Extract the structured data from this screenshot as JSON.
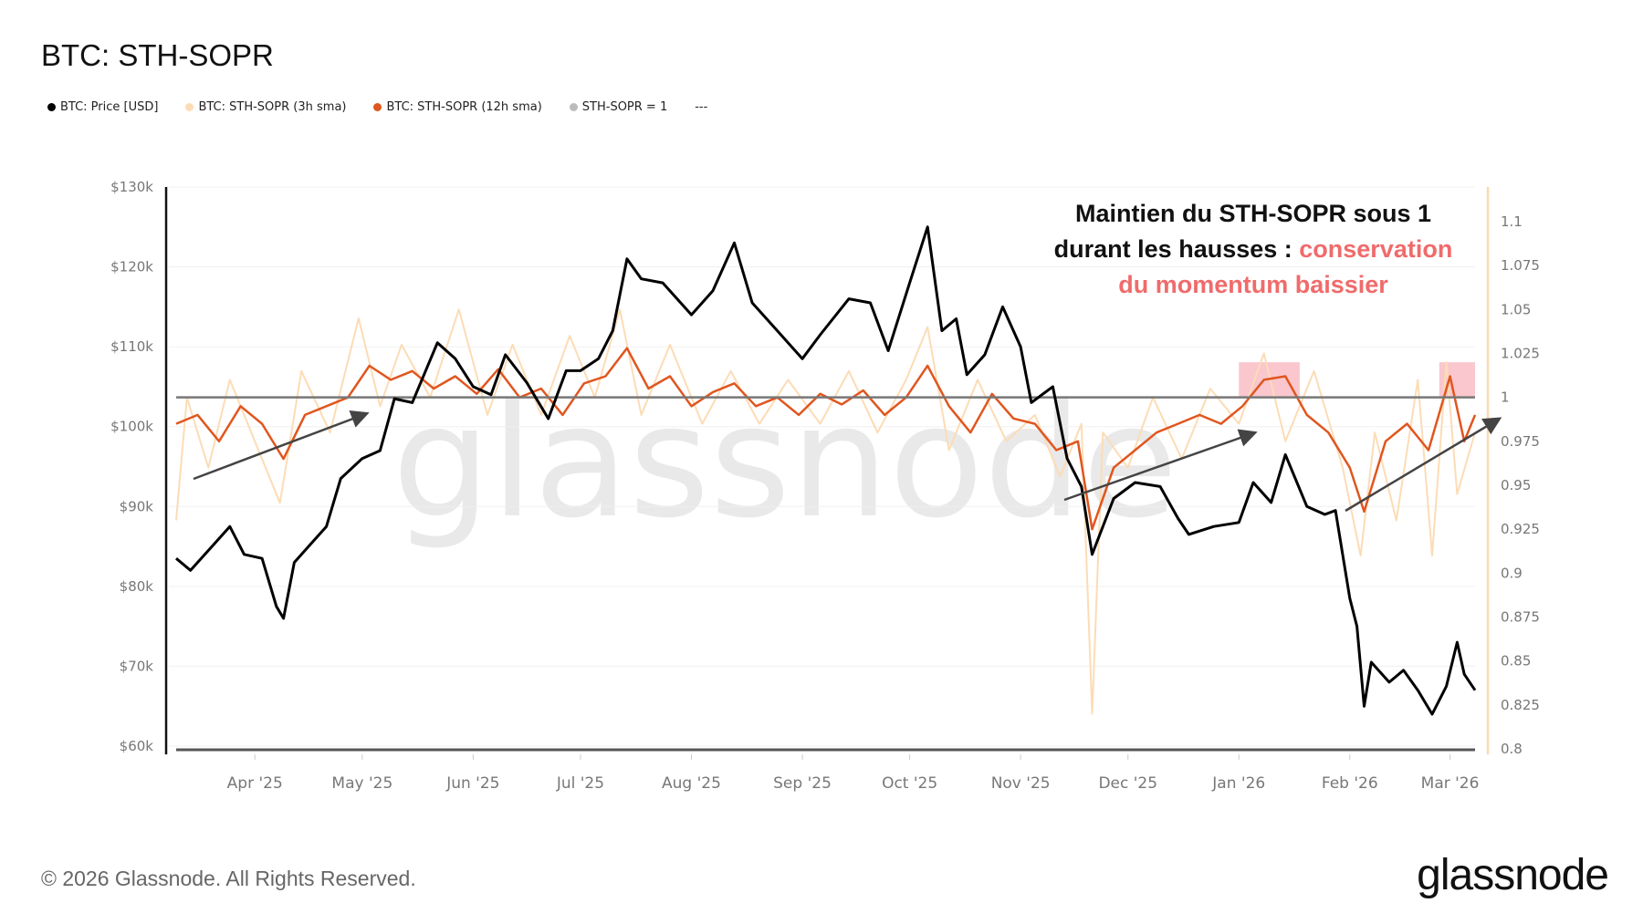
{
  "title": "BTC: STH-SOPR",
  "legend": [
    {
      "label": "BTC: Price [USD]",
      "color": "#000000"
    },
    {
      "label": "BTC: STH-SOPR (3h sma)",
      "color": "#fcdcb6"
    },
    {
      "label": "BTC: STH-SOPR (12h sma)",
      "color": "#e0561f"
    },
    {
      "label": "STH-SOPR = 1",
      "color": "#bbbbbb"
    },
    {
      "label": "---",
      "color": null
    }
  ],
  "annotation": {
    "line1": "Maintien du STH-SOPR sous 1",
    "line2a": "durant les hausses : ",
    "line2b": "conservation",
    "line3": "du momentum baissier",
    "highlight_color": "#f06b6b"
  },
  "watermark": "glassnode",
  "footer": "© 2026 Glassnode. All Rights Reserved.",
  "logo": "glassnode",
  "chart_data": {
    "type": "line",
    "title": "BTC: STH-SOPR",
    "grid": true,
    "legend_position": "top-left",
    "xlim": [
      "2025-03-10",
      "2026-03-08"
    ],
    "x_ticks": [
      {
        "date": "2025-04-01",
        "label": "Apr '25"
      },
      {
        "date": "2025-05-01",
        "label": "May '25"
      },
      {
        "date": "2025-06-01",
        "label": "Jun '25"
      },
      {
        "date": "2025-07-01",
        "label": "Jul '25"
      },
      {
        "date": "2025-08-01",
        "label": "Aug '25"
      },
      {
        "date": "2025-09-01",
        "label": "Sep '25"
      },
      {
        "date": "2025-10-01",
        "label": "Oct '25"
      },
      {
        "date": "2025-11-01",
        "label": "Nov '25"
      },
      {
        "date": "2025-12-01",
        "label": "Dec '25"
      },
      {
        "date": "2026-01-01",
        "label": "Jan '26"
      },
      {
        "date": "2026-02-01",
        "label": "Feb '26"
      },
      {
        "date": "2026-03-01",
        "label": "Mar '26"
      }
    ],
    "y_left": {
      "lim": [
        60000,
        130000
      ],
      "ticks": [
        60000,
        70000,
        80000,
        90000,
        100000,
        110000,
        120000,
        130000
      ],
      "tick_labels": [
        "$60k",
        "$70k",
        "$80k",
        "$90k",
        "$100k",
        "$110k",
        "$120k",
        "$130k"
      ]
    },
    "y_right": {
      "lim": [
        0.8,
        1.1
      ],
      "ticks": [
        0.8,
        0.825,
        0.85,
        0.875,
        0.9,
        0.925,
        0.95,
        0.975,
        1,
        1.025,
        1.05,
        1.075,
        1.1
      ],
      "tick_labels": [
        "0.8",
        "0.825",
        "0.85",
        "0.875",
        "0.9",
        "0.925",
        "0.95",
        "0.975",
        "1",
        "1.025",
        "1.05",
        "1.075",
        "1.1"
      ]
    },
    "reference_line": {
      "name": "STH-SOPR = 1",
      "value": 1,
      "color": "#777777"
    },
    "highlights": [
      {
        "from": "2026-01-01",
        "to": "2026-01-18",
        "y_range": [
          1.0,
          1.02
        ],
        "color": "#f7b9c0"
      },
      {
        "from": "2026-02-26",
        "to": "2026-03-08",
        "y_range": [
          1.0,
          1.02
        ],
        "color": "#f7b9c0"
      }
    ],
    "series": [
      {
        "name": "BTC: Price [USD]",
        "axis": "left",
        "color": "#000000",
        "x": [
          "2025-03-10",
          "2025-03-14",
          "2025-03-20",
          "2025-03-25",
          "2025-03-29",
          "2025-04-03",
          "2025-04-07",
          "2025-04-09",
          "2025-04-12",
          "2025-04-16",
          "2025-04-21",
          "2025-04-25",
          "2025-05-01",
          "2025-05-06",
          "2025-05-10",
          "2025-05-15",
          "2025-05-22",
          "2025-05-27",
          "2025-06-01",
          "2025-06-06",
          "2025-06-10",
          "2025-06-16",
          "2025-06-22",
          "2025-06-27",
          "2025-07-01",
          "2025-07-06",
          "2025-07-10",
          "2025-07-14",
          "2025-07-18",
          "2025-07-24",
          "2025-08-01",
          "2025-08-07",
          "2025-08-13",
          "2025-08-18",
          "2025-08-25",
          "2025-09-01",
          "2025-09-06",
          "2025-09-14",
          "2025-09-20",
          "2025-09-25",
          "2025-10-01",
          "2025-10-06",
          "2025-10-10",
          "2025-10-14",
          "2025-10-17",
          "2025-10-22",
          "2025-10-27",
          "2025-11-01",
          "2025-11-04",
          "2025-11-10",
          "2025-11-14",
          "2025-11-18",
          "2025-11-21",
          "2025-11-27",
          "2025-12-03",
          "2025-12-10",
          "2025-12-15",
          "2025-12-18",
          "2025-12-25",
          "2026-01-01",
          "2026-01-05",
          "2026-01-10",
          "2026-01-14",
          "2026-01-20",
          "2026-01-25",
          "2026-01-28",
          "2026-02-01",
          "2026-02-03",
          "2026-02-05",
          "2026-02-07",
          "2026-02-12",
          "2026-02-16",
          "2026-02-20",
          "2026-02-24",
          "2026-02-28",
          "2026-03-03",
          "2026-03-05",
          "2026-03-08"
        ],
        "values": [
          83500,
          82000,
          85000,
          87500,
          84000,
          83500,
          77500,
          76000,
          83000,
          85000,
          87500,
          93500,
          96000,
          97000,
          103500,
          103000,
          110500,
          108500,
          105000,
          104000,
          109000,
          105500,
          101000,
          107000,
          107000,
          108500,
          112000,
          121000,
          118500,
          118000,
          114000,
          117000,
          123000,
          115500,
          112000,
          108500,
          111500,
          116000,
          115500,
          109500,
          118000,
          125000,
          112000,
          113500,
          106500,
          109000,
          115000,
          110000,
          103000,
          105000,
          96000,
          92500,
          84000,
          91000,
          93000,
          92500,
          88500,
          86500,
          87500,
          88000,
          93000,
          90500,
          96500,
          90000,
          89000,
          89500,
          78500,
          75000,
          65000,
          70500,
          68000,
          69500,
          67000,
          64000,
          67500,
          73000,
          69000,
          67000
        ]
      },
      {
        "name": "BTC: STH-SOPR (12h sma)",
        "axis": "right",
        "color": "#e0561f",
        "x": [
          "2025-03-10",
          "2025-03-16",
          "2025-03-22",
          "2025-03-28",
          "2025-04-03",
          "2025-04-09",
          "2025-04-15",
          "2025-04-21",
          "2025-04-27",
          "2025-05-03",
          "2025-05-09",
          "2025-05-15",
          "2025-05-21",
          "2025-05-27",
          "2025-06-02",
          "2025-06-08",
          "2025-06-14",
          "2025-06-20",
          "2025-06-26",
          "2025-07-02",
          "2025-07-08",
          "2025-07-14",
          "2025-07-20",
          "2025-07-26",
          "2025-08-01",
          "2025-08-07",
          "2025-08-13",
          "2025-08-19",
          "2025-08-25",
          "2025-08-31",
          "2025-09-06",
          "2025-09-12",
          "2025-09-18",
          "2025-09-24",
          "2025-09-30",
          "2025-10-06",
          "2025-10-12",
          "2025-10-18",
          "2025-10-24",
          "2025-10-30",
          "2025-11-05",
          "2025-11-11",
          "2025-11-17",
          "2025-11-21",
          "2025-11-27",
          "2025-12-03",
          "2025-12-09",
          "2025-12-15",
          "2025-12-21",
          "2025-12-27",
          "2026-01-02",
          "2026-01-08",
          "2026-01-14",
          "2026-01-20",
          "2026-01-26",
          "2026-02-01",
          "2026-02-05",
          "2026-02-11",
          "2026-02-17",
          "2026-02-23",
          "2026-03-01",
          "2026-03-05",
          "2026-03-08"
        ],
        "values": [
          0.985,
          0.99,
          0.975,
          0.995,
          0.985,
          0.965,
          0.99,
          0.995,
          1.0,
          1.018,
          1.01,
          1.015,
          1.005,
          1.012,
          1.002,
          1.016,
          1.0,
          1.005,
          0.99,
          1.008,
          1.012,
          1.028,
          1.005,
          1.012,
          0.995,
          1.003,
          1.008,
          0.995,
          1.0,
          0.99,
          1.002,
          0.996,
          1.004,
          0.99,
          1.0,
          1.018,
          0.995,
          0.98,
          1.002,
          0.988,
          0.985,
          0.97,
          0.975,
          0.925,
          0.96,
          0.97,
          0.98,
          0.985,
          0.99,
          0.985,
          0.995,
          1.01,
          1.012,
          0.99,
          0.98,
          0.96,
          0.935,
          0.975,
          0.985,
          0.97,
          1.012,
          0.975,
          0.99
        ]
      },
      {
        "name": "BTC: STH-SOPR (3h sma)",
        "axis": "right",
        "color": "#fcdcb6",
        "x": [
          "2025-03-10",
          "2025-03-13",
          "2025-03-19",
          "2025-03-25",
          "2025-04-01",
          "2025-04-08",
          "2025-04-14",
          "2025-04-22",
          "2025-04-30",
          "2025-05-06",
          "2025-05-12",
          "2025-05-20",
          "2025-05-28",
          "2025-06-05",
          "2025-06-12",
          "2025-06-20",
          "2025-06-28",
          "2025-07-05",
          "2025-07-12",
          "2025-07-18",
          "2025-07-26",
          "2025-08-04",
          "2025-08-12",
          "2025-08-20",
          "2025-08-28",
          "2025-09-06",
          "2025-09-14",
          "2025-09-22",
          "2025-09-30",
          "2025-10-06",
          "2025-10-12",
          "2025-10-20",
          "2025-10-28",
          "2025-11-05",
          "2025-11-12",
          "2025-11-18",
          "2025-11-21",
          "2025-11-24",
          "2025-12-01",
          "2025-12-08",
          "2025-12-16",
          "2025-12-24",
          "2026-01-01",
          "2026-01-08",
          "2026-01-14",
          "2026-01-22",
          "2026-01-30",
          "2026-02-04",
          "2026-02-08",
          "2026-02-14",
          "2026-02-20",
          "2026-02-24",
          "2026-02-28",
          "2026-03-03",
          "2026-03-08"
        ],
        "values": [
          0.93,
          1.0,
          0.96,
          1.01,
          0.975,
          0.94,
          1.015,
          0.98,
          1.045,
          0.995,
          1.03,
          1.0,
          1.05,
          0.99,
          1.03,
          0.99,
          1.035,
          1.0,
          1.05,
          0.99,
          1.03,
          0.985,
          1.015,
          0.985,
          1.01,
          0.985,
          1.015,
          0.98,
          1.01,
          1.04,
          0.97,
          1.01,
          0.975,
          0.99,
          0.955,
          0.985,
          0.82,
          0.98,
          0.96,
          1.0,
          0.965,
          1.005,
          0.985,
          1.025,
          0.975,
          1.015,
          0.96,
          0.91,
          0.98,
          0.93,
          1.01,
          0.91,
          1.02,
          0.945,
          0.98
        ]
      }
    ]
  }
}
